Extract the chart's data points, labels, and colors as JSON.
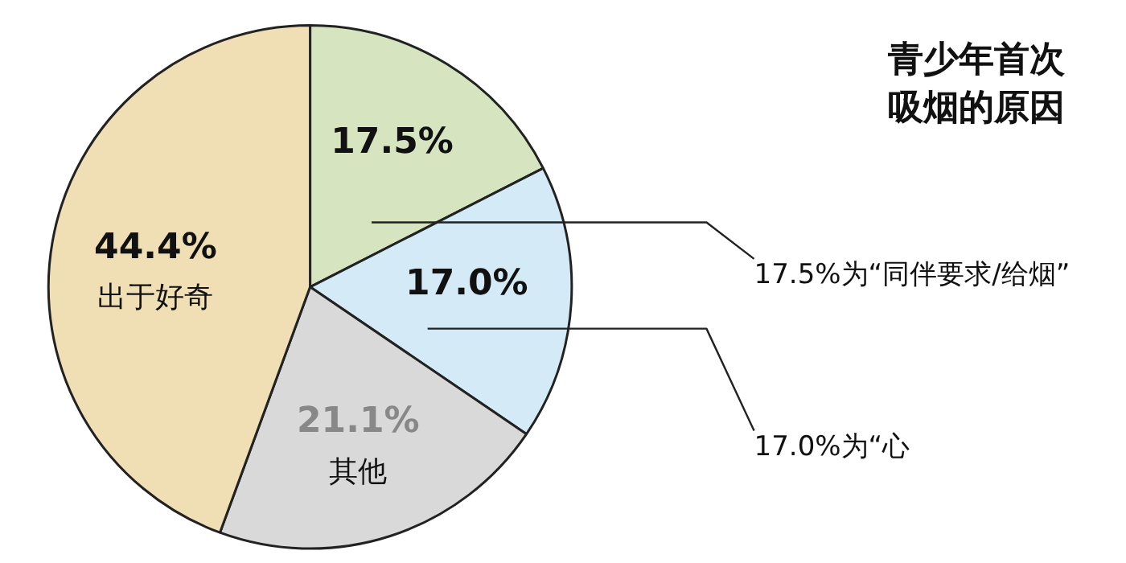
{
  "chart_data": {
    "type": "pie",
    "title": "青少年首次吸烟的原因",
    "categories": [
      null,
      null,
      "其他",
      "出于好奇"
    ],
    "values": [
      17.5,
      17.0,
      21.1,
      44.4
    ],
    "colors": [
      "#d6e4c0",
      "#d4ebf7",
      "#d9d9d9",
      "#f0dfb5"
    ],
    "value_labels": [
      "17.5%",
      "17.0%",
      "21.1%",
      "44.4%"
    ],
    "annotations": [
      "17.5%为“同伴要求/给烟”",
      "17.0%为“心"
    ]
  }
}
